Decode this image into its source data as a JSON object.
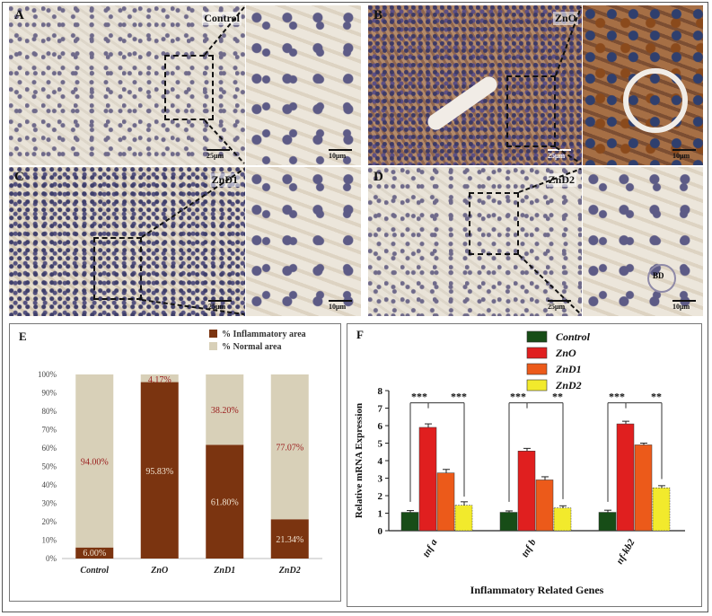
{
  "micrographs": [
    {
      "letter": "A",
      "label": "Control",
      "scale_main": "25μm",
      "scale_zoom": "10μm"
    },
    {
      "letter": "B",
      "label": "ZnO",
      "scale_main": "25μm",
      "scale_zoom": "10μm"
    },
    {
      "letter": "C",
      "label": "ZnD1",
      "scale_main": "25μm",
      "scale_zoom": "10μm"
    },
    {
      "letter": "D",
      "label": "ZnD2",
      "scale_main": "25μm",
      "scale_zoom": "10μm",
      "zoom_annotation": "BD"
    }
  ],
  "chart_data": [
    {
      "panel": "E",
      "type": "bar",
      "stacked": true,
      "categories": [
        "Control",
        "ZnO",
        "ZnD1",
        "ZnD2"
      ],
      "series": [
        {
          "name": "% Inflammatory area",
          "color": "#7b3410",
          "values": [
            6.0,
            95.83,
            61.8,
            21.34
          ],
          "labels": [
            "6.00%",
            "95.83%",
            "61.80%",
            "21.34%"
          ]
        },
        {
          "name": "% Normal area",
          "color": "#d8d0b8",
          "values": [
            94.0,
            4.17,
            38.2,
            77.07
          ],
          "labels": [
            "94.00%",
            "4.17%",
            "38.20%",
            "77.07%"
          ]
        }
      ],
      "ylim": [
        0,
        100
      ],
      "yticks": [
        "0%",
        "10%",
        "20%",
        "30%",
        "40%",
        "50%",
        "60%",
        "70%",
        "80%",
        "90%",
        "100%"
      ],
      "legend_position": "top-right",
      "grid": false
    },
    {
      "panel": "F",
      "type": "bar",
      "categories": [
        "tnf a",
        "tnf b",
        "nf-kb2"
      ],
      "series": [
        {
          "name": "Control",
          "color": "#174d17",
          "values": [
            1.05,
            1.05,
            1.05
          ],
          "errors": [
            0.1,
            0.08,
            0.12
          ]
        },
        {
          "name": "ZnO",
          "color": "#e01f1f",
          "values": [
            5.9,
            4.55,
            6.1
          ],
          "errors": [
            0.2,
            0.15,
            0.15
          ]
        },
        {
          "name": "ZnD1",
          "color": "#ec5a1a",
          "values": [
            3.3,
            2.9,
            4.9
          ],
          "errors": [
            0.2,
            0.18,
            0.1
          ]
        },
        {
          "name": "ZnD2",
          "color": "#f2ea2c",
          "values": [
            1.45,
            1.3,
            2.45
          ],
          "errors": [
            0.2,
            0.12,
            0.12
          ]
        }
      ],
      "ylim": [
        0,
        8
      ],
      "yticks": [
        "0",
        "1",
        "2",
        "3",
        "4",
        "5",
        "6",
        "7",
        "8"
      ],
      "ylabel": "Relative mRNA Expression",
      "xlabel": "Inflammatory Related Genes",
      "significance": [
        {
          "group": 0,
          "left": "***",
          "right": "***"
        },
        {
          "group": 1,
          "left": "***",
          "right": "**"
        },
        {
          "group": 2,
          "left": "***",
          "right": "**"
        }
      ],
      "legend_position": "top-right"
    }
  ]
}
